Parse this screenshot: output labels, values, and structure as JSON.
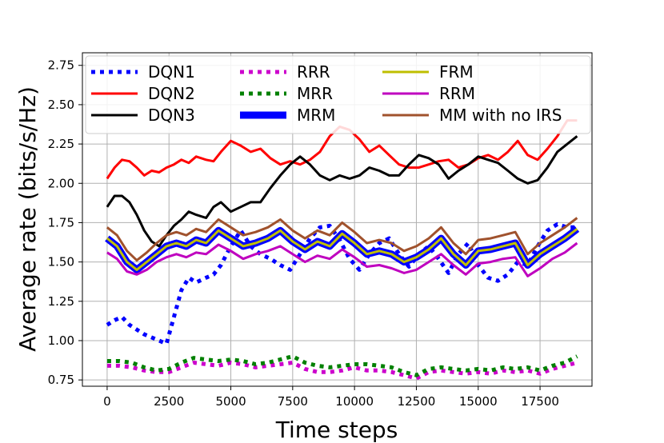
{
  "chart_data": {
    "type": "line",
    "xlabel": "Time steps",
    "ylabel": "Average rate (bits/s/Hz)",
    "xlim": [
      -1000,
      19600
    ],
    "ylim": [
      0.71,
      2.83
    ],
    "xticks": [
      0,
      2500,
      5000,
      7500,
      10000,
      12500,
      15000,
      17500
    ],
    "xtick_labels": [
      "0",
      "2500",
      "5000",
      "7500",
      "10000",
      "12500",
      "15000",
      "17500"
    ],
    "yticks": [
      0.75,
      1.0,
      1.25,
      1.5,
      1.75,
      2.0,
      2.25,
      2.5,
      2.75
    ],
    "ytick_labels": [
      "0.75",
      "1.00",
      "1.25",
      "1.50",
      "1.75",
      "2.00",
      "2.25",
      "2.50",
      "2.75"
    ],
    "grid": true,
    "legend_position": "top",
    "legend_columns": 3,
    "series": [
      {
        "name": "DQN1",
        "color": "#0000ff",
        "style": "dotted",
        "width": 5,
        "x": [
          0,
          300,
          600,
          900,
          1200,
          1500,
          1800,
          2100,
          2400,
          2700,
          3000,
          3300,
          3600,
          4000,
          4300,
          4600,
          5000,
          5400,
          5800,
          6200,
          6600,
          7000,
          7400,
          7800,
          8200,
          8600,
          9000,
          9400,
          9800,
          10200,
          10600,
          11000,
          11400,
          11800,
          12200,
          12600,
          13000,
          13400,
          13800,
          14200,
          14600,
          15000,
          15400,
          15800,
          16200,
          16600,
          17000,
          17400,
          17800,
          18200,
          18600,
          19000
        ],
        "y": [
          1.1,
          1.13,
          1.15,
          1.1,
          1.07,
          1.04,
          1.02,
          1.0,
          0.98,
          1.15,
          1.32,
          1.4,
          1.37,
          1.4,
          1.42,
          1.48,
          1.6,
          1.7,
          1.6,
          1.55,
          1.52,
          1.48,
          1.45,
          1.55,
          1.65,
          1.72,
          1.73,
          1.64,
          1.52,
          1.45,
          1.55,
          1.62,
          1.65,
          1.55,
          1.47,
          1.55,
          1.6,
          1.52,
          1.43,
          1.55,
          1.62,
          1.48,
          1.4,
          1.38,
          1.42,
          1.5,
          1.48,
          1.6,
          1.7,
          1.74,
          1.72,
          1.72
        ]
      },
      {
        "name": "DQN2",
        "color": "#ff0000",
        "style": "solid",
        "width": 3,
        "x": [
          0,
          300,
          600,
          900,
          1200,
          1500,
          1800,
          2100,
          2400,
          2700,
          3000,
          3300,
          3600,
          4000,
          4300,
          4600,
          5000,
          5400,
          5800,
          6200,
          6600,
          7000,
          7400,
          7800,
          8200,
          8600,
          9000,
          9400,
          9800,
          10200,
          10600,
          11000,
          11400,
          11800,
          12200,
          12600,
          13000,
          13400,
          13800,
          14200,
          14600,
          15000,
          15400,
          15800,
          16200,
          16600,
          17000,
          17400,
          17800,
          18200,
          18600,
          19000
        ],
        "y": [
          2.03,
          2.1,
          2.15,
          2.14,
          2.1,
          2.05,
          2.08,
          2.07,
          2.1,
          2.12,
          2.15,
          2.13,
          2.17,
          2.15,
          2.14,
          2.2,
          2.27,
          2.24,
          2.2,
          2.22,
          2.16,
          2.12,
          2.14,
          2.12,
          2.15,
          2.2,
          2.3,
          2.36,
          2.34,
          2.28,
          2.2,
          2.24,
          2.18,
          2.12,
          2.1,
          2.1,
          2.12,
          2.14,
          2.15,
          2.1,
          2.12,
          2.16,
          2.18,
          2.15,
          2.2,
          2.27,
          2.18,
          2.15,
          2.22,
          2.3,
          2.4,
          2.4
        ]
      },
      {
        "name": "DQN3",
        "color": "#000000",
        "style": "solid",
        "width": 3,
        "x": [
          0,
          300,
          600,
          900,
          1200,
          1500,
          1800,
          2100,
          2400,
          2700,
          3000,
          3300,
          3600,
          4000,
          4300,
          4600,
          5000,
          5400,
          5800,
          6200,
          6600,
          7000,
          7400,
          7800,
          8200,
          8600,
          9000,
          9400,
          9800,
          10200,
          10600,
          11000,
          11400,
          11800,
          12200,
          12600,
          13000,
          13400,
          13800,
          14200,
          14600,
          15000,
          15400,
          15800,
          16200,
          16600,
          17000,
          17400,
          17800,
          18200,
          18600,
          19000
        ],
        "y": [
          1.85,
          1.92,
          1.92,
          1.88,
          1.8,
          1.7,
          1.63,
          1.6,
          1.67,
          1.73,
          1.77,
          1.82,
          1.8,
          1.78,
          1.85,
          1.88,
          1.82,
          1.85,
          1.88,
          1.88,
          1.97,
          2.05,
          2.12,
          2.17,
          2.12,
          2.05,
          2.02,
          2.05,
          2.03,
          2.05,
          2.1,
          2.08,
          2.05,
          2.05,
          2.12,
          2.18,
          2.16,
          2.12,
          2.03,
          2.08,
          2.12,
          2.17,
          2.15,
          2.13,
          2.08,
          2.03,
          2.0,
          2.02,
          2.1,
          2.2,
          2.25,
          2.3
        ]
      },
      {
        "name": "RRR",
        "color": "#cc00cc",
        "style": "dotted",
        "width": 5,
        "x": [
          0,
          500,
          1000,
          1500,
          2000,
          2500,
          3000,
          3500,
          4000,
          4500,
          5000,
          5500,
          6000,
          6500,
          7000,
          7500,
          8000,
          8500,
          9000,
          9500,
          10000,
          10500,
          11000,
          11500,
          12000,
          12500,
          13000,
          13500,
          14000,
          14500,
          15000,
          15500,
          16000,
          16500,
          17000,
          17500,
          18000,
          18500,
          19000
        ],
        "y": [
          0.84,
          0.84,
          0.83,
          0.81,
          0.8,
          0.8,
          0.83,
          0.86,
          0.85,
          0.84,
          0.86,
          0.85,
          0.83,
          0.84,
          0.85,
          0.86,
          0.82,
          0.8,
          0.8,
          0.81,
          0.83,
          0.81,
          0.81,
          0.8,
          0.78,
          0.76,
          0.8,
          0.81,
          0.8,
          0.79,
          0.8,
          0.79,
          0.81,
          0.8,
          0.81,
          0.79,
          0.82,
          0.84,
          0.86
        ]
      },
      {
        "name": "MRR",
        "color": "#008000",
        "style": "dotted",
        "width": 5,
        "x": [
          0,
          500,
          1000,
          1500,
          2000,
          2500,
          3000,
          3500,
          4000,
          4500,
          5000,
          5500,
          6000,
          6500,
          7000,
          7500,
          8000,
          8500,
          9000,
          9500,
          10000,
          10500,
          11000,
          11500,
          12000,
          12500,
          13000,
          13500,
          14000,
          14500,
          15000,
          15500,
          16000,
          16500,
          17000,
          17500,
          18000,
          18500,
          19000
        ],
        "y": [
          0.87,
          0.87,
          0.86,
          0.83,
          0.81,
          0.82,
          0.86,
          0.89,
          0.88,
          0.87,
          0.88,
          0.87,
          0.85,
          0.86,
          0.88,
          0.9,
          0.86,
          0.84,
          0.83,
          0.84,
          0.85,
          0.85,
          0.84,
          0.83,
          0.8,
          0.78,
          0.82,
          0.83,
          0.82,
          0.81,
          0.82,
          0.81,
          0.83,
          0.82,
          0.83,
          0.81,
          0.84,
          0.86,
          0.9
        ]
      },
      {
        "name": "MRM",
        "color": "#0000ff",
        "style": "solid",
        "width": 9,
        "x": [
          0,
          400,
          800,
          1200,
          1600,
          2000,
          2400,
          2800,
          3200,
          3600,
          4000,
          4500,
          5000,
          5500,
          6000,
          6500,
          7000,
          7500,
          8000,
          8500,
          9000,
          9500,
          10000,
          10500,
          11000,
          11500,
          12000,
          12500,
          13000,
          13500,
          14000,
          14500,
          15000,
          15500,
          16000,
          16500,
          17000,
          17500,
          18000,
          18500,
          19000
        ],
        "y": [
          1.65,
          1.6,
          1.5,
          1.45,
          1.5,
          1.55,
          1.6,
          1.62,
          1.6,
          1.64,
          1.62,
          1.7,
          1.65,
          1.6,
          1.62,
          1.65,
          1.7,
          1.63,
          1.58,
          1.63,
          1.6,
          1.68,
          1.62,
          1.55,
          1.57,
          1.55,
          1.5,
          1.53,
          1.58,
          1.65,
          1.55,
          1.48,
          1.57,
          1.58,
          1.6,
          1.62,
          1.48,
          1.55,
          1.6,
          1.65,
          1.71
        ]
      },
      {
        "name": "FRM",
        "color": "#bfbf00",
        "style": "solid",
        "width": 3,
        "x": [
          0,
          400,
          800,
          1200,
          1600,
          2000,
          2400,
          2800,
          3200,
          3600,
          4000,
          4500,
          5000,
          5500,
          6000,
          6500,
          7000,
          7500,
          8000,
          8500,
          9000,
          9500,
          10000,
          10500,
          11000,
          11500,
          12000,
          12500,
          13000,
          13500,
          14000,
          14500,
          15000,
          15500,
          16000,
          16500,
          17000,
          17500,
          18000,
          18500,
          19000
        ],
        "y": [
          1.65,
          1.6,
          1.5,
          1.45,
          1.5,
          1.55,
          1.6,
          1.62,
          1.6,
          1.64,
          1.62,
          1.7,
          1.65,
          1.6,
          1.62,
          1.65,
          1.7,
          1.63,
          1.58,
          1.63,
          1.6,
          1.68,
          1.62,
          1.55,
          1.57,
          1.55,
          1.5,
          1.53,
          1.58,
          1.65,
          1.55,
          1.48,
          1.57,
          1.58,
          1.6,
          1.62,
          1.48,
          1.55,
          1.6,
          1.65,
          1.71
        ]
      },
      {
        "name": "RRM",
        "color": "#bf00bf",
        "style": "solid",
        "width": 3,
        "x": [
          0,
          400,
          800,
          1200,
          1600,
          2000,
          2400,
          2800,
          3200,
          3600,
          4000,
          4500,
          5000,
          5500,
          6000,
          6500,
          7000,
          7500,
          8000,
          8500,
          9000,
          9500,
          10000,
          10500,
          11000,
          11500,
          12000,
          12500,
          13000,
          13500,
          14000,
          14500,
          15000,
          15500,
          16000,
          16500,
          17000,
          17500,
          18000,
          18500,
          19000
        ],
        "y": [
          1.56,
          1.52,
          1.44,
          1.42,
          1.45,
          1.5,
          1.53,
          1.55,
          1.53,
          1.56,
          1.55,
          1.61,
          1.57,
          1.52,
          1.55,
          1.57,
          1.6,
          1.55,
          1.5,
          1.54,
          1.52,
          1.58,
          1.53,
          1.47,
          1.48,
          1.46,
          1.43,
          1.45,
          1.5,
          1.55,
          1.48,
          1.42,
          1.49,
          1.5,
          1.52,
          1.53,
          1.41,
          1.46,
          1.52,
          1.56,
          1.62
        ]
      },
      {
        "name": "MM with no IRS",
        "color": "#a0522d",
        "style": "solid",
        "width": 3,
        "x": [
          0,
          400,
          800,
          1200,
          1600,
          2000,
          2400,
          2800,
          3200,
          3600,
          4000,
          4500,
          5000,
          5500,
          6000,
          6500,
          7000,
          7500,
          8000,
          8500,
          9000,
          9500,
          10000,
          10500,
          11000,
          11500,
          12000,
          12500,
          13000,
          13500,
          14000,
          14500,
          15000,
          15500,
          16000,
          16500,
          17000,
          17500,
          18000,
          18500,
          19000
        ],
        "y": [
          1.72,
          1.67,
          1.57,
          1.51,
          1.56,
          1.62,
          1.67,
          1.69,
          1.67,
          1.71,
          1.69,
          1.77,
          1.72,
          1.67,
          1.69,
          1.72,
          1.77,
          1.7,
          1.65,
          1.7,
          1.67,
          1.75,
          1.69,
          1.62,
          1.64,
          1.62,
          1.57,
          1.6,
          1.65,
          1.72,
          1.62,
          1.55,
          1.64,
          1.65,
          1.67,
          1.69,
          1.55,
          1.62,
          1.67,
          1.72,
          1.78
        ]
      }
    ]
  }
}
